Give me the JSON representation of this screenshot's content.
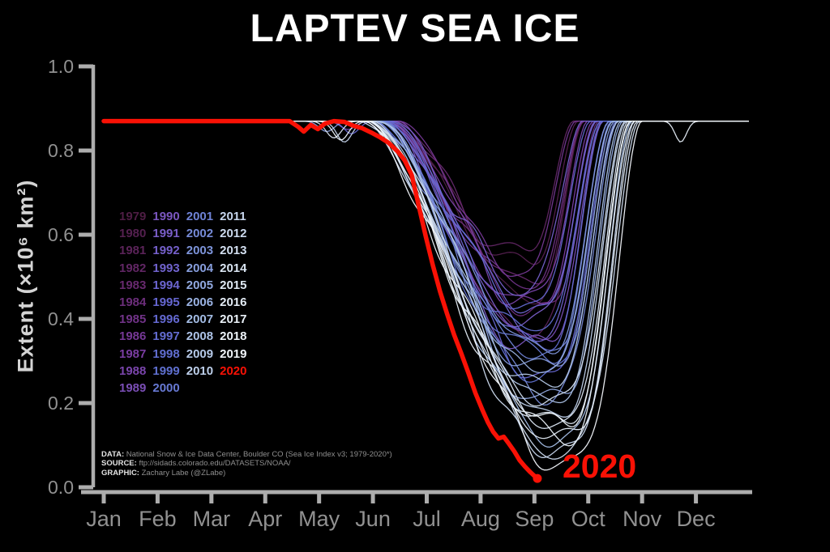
{
  "title": "LAPTEV SEA ICE",
  "annotation_2020": "2020",
  "colors": {
    "background": "#000000",
    "title": "#ffffff",
    "axis": "#adadad",
    "tick_label": "#919191",
    "ylabel": "#d4d4d4",
    "highlight_red": "#f91105",
    "year_color_stops": [
      "#4e1d44",
      "#67296e",
      "#7a3da2",
      "#7a5ec8",
      "#6667d2",
      "#5f70d0",
      "#7d94da",
      "#a3bce4",
      "#c6d5ec",
      "#dfe9f3",
      "#f2f6fb"
    ]
  },
  "axes": {
    "ylabel": "Extent (×10⁶ km²)",
    "yticks": [
      "0.0",
      "0.2",
      "0.4",
      "0.6",
      "0.8",
      "1.0"
    ],
    "months": [
      "Jan",
      "Feb",
      "Mar",
      "Apr",
      "May",
      "Jun",
      "Jul",
      "Aug",
      "Sep",
      "Oct",
      "Nov",
      "Dec"
    ]
  },
  "legend_columns": [
    [
      "1979",
      "1980",
      "1981",
      "1982",
      "1983",
      "1984",
      "1985",
      "1986",
      "1987",
      "1988",
      "1989"
    ],
    [
      "1990",
      "1991",
      "1992",
      "1993",
      "1994",
      "1995",
      "1996",
      "1997",
      "1998",
      "1999",
      "2000"
    ],
    [
      "2001",
      "2002",
      "2003",
      "2004",
      "2005",
      "2006",
      "2007",
      "2008",
      "2009",
      "2010"
    ],
    [
      "2011",
      "2012",
      "2013",
      "2014",
      "2015",
      "2016",
      "2017",
      "2018",
      "2019",
      "2020"
    ]
  ],
  "credits": [
    {
      "label": "DATA:",
      "text": " National Snow & Ice Data Center, Boulder CO (Sea Ice Index v3; 1979-2020*)"
    },
    {
      "label": "SOURCE:",
      "text": " ftp://sidads.colorado.edu/DATASETS/NOAA/"
    },
    {
      "label": "GRAPHIC:",
      "text": " Zachary Labe (@ZLabe)"
    }
  ],
  "chart_data": {
    "type": "line",
    "title": "LAPTEV SEA ICE",
    "xlabel": "",
    "ylabel": "Extent (×10⁶ km²)",
    "x_unit": "day_of_year",
    "x_tick_labels": [
      "Jan",
      "Feb",
      "Mar",
      "Apr",
      "May",
      "Jun",
      "Jul",
      "Aug",
      "Sep",
      "Oct",
      "Nov",
      "Dec"
    ],
    "ylim": [
      0.0,
      1.0
    ],
    "yticks": [
      0.0,
      0.2,
      0.4,
      0.6,
      0.8,
      1.0
    ],
    "grid": false,
    "legend_position": "center-left",
    "winter_plateau": 0.87,
    "series_note": "One line per year 1979-2019, each flat at the 0.87 winter plateau, melting to its summer minimum (min, at day min_day) and refreezing back to the plateau by freeze_end; values estimated from the plotted envelope.",
    "years": [
      {
        "year": 1979,
        "min": 0.46,
        "min_day": 236,
        "melt_start": 163,
        "freeze_end": 272
      },
      {
        "year": 1980,
        "min": 0.52,
        "min_day": 232,
        "melt_start": 166,
        "freeze_end": 268
      },
      {
        "year": 1981,
        "min": 0.38,
        "min_day": 240,
        "melt_start": 159,
        "freeze_end": 278
      },
      {
        "year": 1982,
        "min": 0.55,
        "min_day": 230,
        "melt_start": 167,
        "freeze_end": 266
      },
      {
        "year": 1983,
        "min": 0.5,
        "min_day": 236,
        "melt_start": 164,
        "freeze_end": 272
      },
      {
        "year": 1984,
        "min": 0.42,
        "min_day": 242,
        "melt_start": 161,
        "freeze_end": 280
      },
      {
        "year": 1985,
        "min": 0.47,
        "min_day": 234,
        "melt_start": 162,
        "freeze_end": 271
      },
      {
        "year": 1986,
        "min": 0.53,
        "min_day": 231,
        "melt_start": 166,
        "freeze_end": 267
      },
      {
        "year": 1987,
        "min": 0.43,
        "min_day": 239,
        "melt_start": 160,
        "freeze_end": 277
      },
      {
        "year": 1988,
        "min": 0.46,
        "min_day": 237,
        "melt_start": 163,
        "freeze_end": 274
      },
      {
        "year": 1989,
        "min": 0.36,
        "min_day": 243,
        "melt_start": 158,
        "freeze_end": 282
      },
      {
        "year": 1990,
        "min": 0.33,
        "min_day": 242,
        "melt_start": 156,
        "freeze_end": 283,
        "dip": {
          "day": 138,
          "depth": 0.02
        }
      },
      {
        "year": 1991,
        "min": 0.4,
        "min_day": 238,
        "melt_start": 159,
        "freeze_end": 279
      },
      {
        "year": 1992,
        "min": 0.48,
        "min_day": 233,
        "melt_start": 164,
        "freeze_end": 270
      },
      {
        "year": 1993,
        "min": 0.38,
        "min_day": 241,
        "melt_start": 158,
        "freeze_end": 281
      },
      {
        "year": 1994,
        "min": 0.42,
        "min_day": 239,
        "melt_start": 160,
        "freeze_end": 278
      },
      {
        "year": 1995,
        "min": 0.28,
        "min_day": 246,
        "melt_start": 154,
        "freeze_end": 288,
        "dip": {
          "day": 140,
          "depth": 0.03
        }
      },
      {
        "year": 1996,
        "min": 0.44,
        "min_day": 236,
        "melt_start": 162,
        "freeze_end": 275
      },
      {
        "year": 1997,
        "min": 0.35,
        "min_day": 242,
        "melt_start": 157,
        "freeze_end": 283
      },
      {
        "year": 1998,
        "min": 0.37,
        "min_day": 240,
        "melt_start": 159,
        "freeze_end": 281
      },
      {
        "year": 1999,
        "min": 0.26,
        "min_day": 247,
        "melt_start": 153,
        "freeze_end": 290
      },
      {
        "year": 2000,
        "min": 0.31,
        "min_day": 244,
        "melt_start": 156,
        "freeze_end": 286
      },
      {
        "year": 2001,
        "min": 0.3,
        "min_day": 245,
        "melt_start": 155,
        "freeze_end": 287
      },
      {
        "year": 2002,
        "min": 0.24,
        "min_day": 248,
        "melt_start": 153,
        "freeze_end": 291
      },
      {
        "year": 2003,
        "min": 0.33,
        "min_day": 243,
        "melt_start": 157,
        "freeze_end": 286
      },
      {
        "year": 2004,
        "min": 0.27,
        "min_day": 246,
        "melt_start": 154,
        "freeze_end": 289,
        "dip": {
          "day": 126,
          "depth": 0.025
        }
      },
      {
        "year": 2005,
        "min": 0.21,
        "min_day": 250,
        "melt_start": 151,
        "freeze_end": 294
      },
      {
        "year": 2006,
        "min": 0.29,
        "min_day": 244,
        "melt_start": 155,
        "freeze_end": 288
      },
      {
        "year": 2007,
        "min": 0.12,
        "min_day": 254,
        "melt_start": 148,
        "freeze_end": 299
      },
      {
        "year": 2008,
        "min": 0.22,
        "min_day": 249,
        "melt_start": 152,
        "freeze_end": 293
      },
      {
        "year": 2009,
        "min": 0.25,
        "min_day": 247,
        "melt_start": 154,
        "freeze_end": 291
      },
      {
        "year": 2010,
        "min": 0.18,
        "min_day": 251,
        "melt_start": 150,
        "freeze_end": 296
      },
      {
        "year": 2011,
        "min": 0.1,
        "min_day": 256,
        "melt_start": 147,
        "freeze_end": 301,
        "dip": {
          "day": 136,
          "depth": 0.05
        }
      },
      {
        "year": 2012,
        "min": 0.09,
        "min_day": 257,
        "melt_start": 146,
        "freeze_end": 303
      },
      {
        "year": 2013,
        "min": 0.2,
        "min_day": 250,
        "melt_start": 151,
        "freeze_end": 295
      },
      {
        "year": 2014,
        "min": 0.16,
        "min_day": 252,
        "melt_start": 149,
        "freeze_end": 297,
        "dip": {
          "day": 130,
          "depth": 0.04
        }
      },
      {
        "year": 2015,
        "min": 0.14,
        "min_day": 253,
        "melt_start": 149,
        "freeze_end": 298
      },
      {
        "year": 2016,
        "min": 0.11,
        "min_day": 255,
        "melt_start": 147,
        "freeze_end": 302,
        "notch": {
          "day": 326,
          "depth": 0.05
        }
      },
      {
        "year": 2017,
        "min": 0.13,
        "min_day": 254,
        "melt_start": 148,
        "freeze_end": 300
      },
      {
        "year": 2018,
        "min": 0.15,
        "min_day": 252,
        "melt_start": 149,
        "freeze_end": 298,
        "dip": {
          "day": 134,
          "depth": 0.045
        }
      },
      {
        "year": 2019,
        "min": 0.07,
        "min_day": 258,
        "melt_start": 146,
        "freeze_end": 305
      }
    ],
    "highlight_2020": {
      "name": "2020",
      "color": "#f91105",
      "ends_with_dot": true,
      "points_day_value": [
        [
          0,
          0.87
        ],
        [
          20,
          0.87
        ],
        [
          40,
          0.87
        ],
        [
          60,
          0.87
        ],
        [
          80,
          0.87
        ],
        [
          95,
          0.87
        ],
        [
          105,
          0.87
        ],
        [
          110,
          0.856
        ],
        [
          113,
          0.845
        ],
        [
          117,
          0.861
        ],
        [
          121,
          0.851
        ],
        [
          125,
          0.864
        ],
        [
          130,
          0.87
        ],
        [
          136,
          0.868
        ],
        [
          141,
          0.859
        ],
        [
          146,
          0.853
        ],
        [
          151,
          0.843
        ],
        [
          156,
          0.832
        ],
        [
          161,
          0.818
        ],
        [
          166,
          0.798
        ],
        [
          170,
          0.777
        ],
        [
          174,
          0.742
        ],
        [
          178,
          0.668
        ],
        [
          182,
          0.595
        ],
        [
          186,
          0.527
        ],
        [
          190,
          0.465
        ],
        [
          194,
          0.412
        ],
        [
          198,
          0.362
        ],
        [
          202,
          0.318
        ],
        [
          206,
          0.272
        ],
        [
          210,
          0.224
        ],
        [
          214,
          0.183
        ],
        [
          217,
          0.155
        ],
        [
          220,
          0.132
        ],
        [
          223,
          0.116
        ],
        [
          226,
          0.12
        ],
        [
          229,
          0.103
        ],
        [
          232,
          0.085
        ],
        [
          235,
          0.064
        ],
        [
          238,
          0.049
        ],
        [
          241,
          0.036
        ],
        [
          243,
          0.028
        ],
        [
          245,
          0.021
        ]
      ]
    }
  }
}
